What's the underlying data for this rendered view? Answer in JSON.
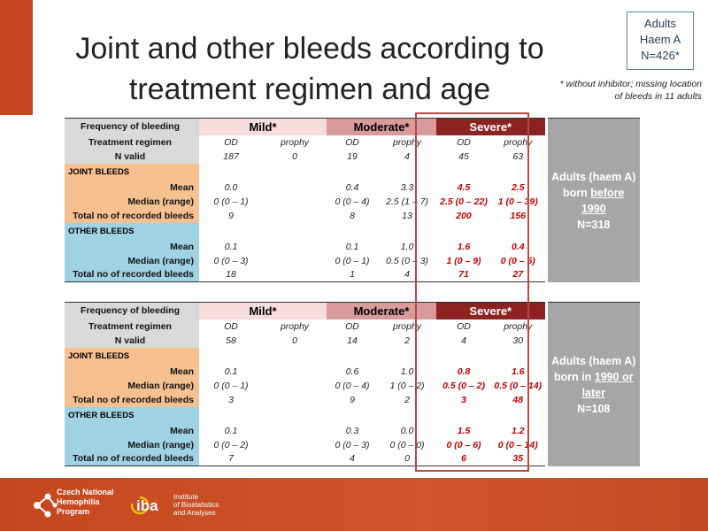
{
  "title": "Joint and other bleeds according to treatment regimen and age",
  "badge": {
    "line1": "Adults",
    "line2": "Haem A",
    "line3": "N=426*"
  },
  "note": "* without inhibitor; missing location of bleeds in 11 adults",
  "labels": {
    "frequency": "Frequency of bleeding",
    "regimen": "Treatment regimen",
    "n_valid": "N valid",
    "joint": "JOINT BLEEDS",
    "other": "OTHER BLEEDS",
    "mean": "Mean",
    "median": "Median (range)",
    "total": "Total no of recorded bleeds"
  },
  "severity": {
    "mild": "Mild*",
    "moderate": "Moderate*",
    "severe": "Severe*"
  },
  "regimens": [
    "OD",
    "prophy",
    "OD",
    "prophy",
    "OD",
    "prophy"
  ],
  "tables": [
    {
      "side": {
        "l1": "Adults (haem A)",
        "l2a": "born ",
        "l2b": "before 1990",
        "l3": "N=318"
      },
      "n_valid": [
        "187",
        "0",
        "19",
        "4",
        "45",
        "63"
      ],
      "joint": {
        "mean": [
          "0.0",
          "",
          "0.4",
          "3.3",
          "4.5",
          "2.5"
        ],
        "median": [
          "0 (0 – 1)",
          "",
          "0 (0 – 4)",
          "2.5 (1 – 7)",
          "2.5 (0 – 22)",
          "1 (0 – 39)"
        ],
        "total": [
          "9",
          "",
          "8",
          "13",
          "200",
          "156"
        ]
      },
      "other": {
        "mean": [
          "0.1",
          "",
          "0.1",
          "1.0",
          "1.6",
          "0.4"
        ],
        "median": [
          "0 (0 – 3)",
          "",
          "0 (0 – 1)",
          "0.5 (0 – 3)",
          "1 (0 – 9)",
          "0 (0 – 5)"
        ],
        "total": [
          "18",
          "",
          "1",
          "4",
          "71",
          "27"
        ]
      }
    },
    {
      "side": {
        "l1": "Adults (haem A)",
        "l2a": "born in ",
        "l2b": "1990 or later",
        "l3": "N=108"
      },
      "n_valid": [
        "58",
        "0",
        "14",
        "2",
        "4",
        "30"
      ],
      "joint": {
        "mean": [
          "0.1",
          "",
          "0.6",
          "1.0",
          "0.8",
          "1.6"
        ],
        "median": [
          "0 (0 – 1)",
          "",
          "0 (0 – 4)",
          "1 (0 – 2)",
          "0.5 (0 – 2)",
          "0.5 (0 – 14)"
        ],
        "total": [
          "3",
          "",
          "9",
          "2",
          "3",
          "48"
        ]
      },
      "other": {
        "mean": [
          "0.1",
          "",
          "0.3",
          "0.0",
          "1.5",
          "1.2"
        ],
        "median": [
          "0 (0 – 2)",
          "",
          "0 (0 – 3)",
          "0 (0 – 0)",
          "0 (0 – 6)",
          "0 (0 – 14)"
        ],
        "total": [
          "7",
          "",
          "4",
          "0",
          "6",
          "35"
        ]
      }
    }
  ],
  "footer": {
    "logo1_l1": "Czech National",
    "logo1_l2": "Hemophilia",
    "logo1_l3": "Program",
    "logo2_mark": "iba",
    "logo2_l1": "Institute",
    "logo2_l2": "of Biostatistics",
    "logo2_l3": "and Analyses"
  },
  "colors": {
    "accent": "#c8461f",
    "mild": "#f6dcdc",
    "moderate": "#d99a9a",
    "severe": "#8b2323",
    "joint": "#f7c090",
    "other": "#9fd2e3",
    "side": "#a6a6a6",
    "severe_text": "#c00000"
  }
}
